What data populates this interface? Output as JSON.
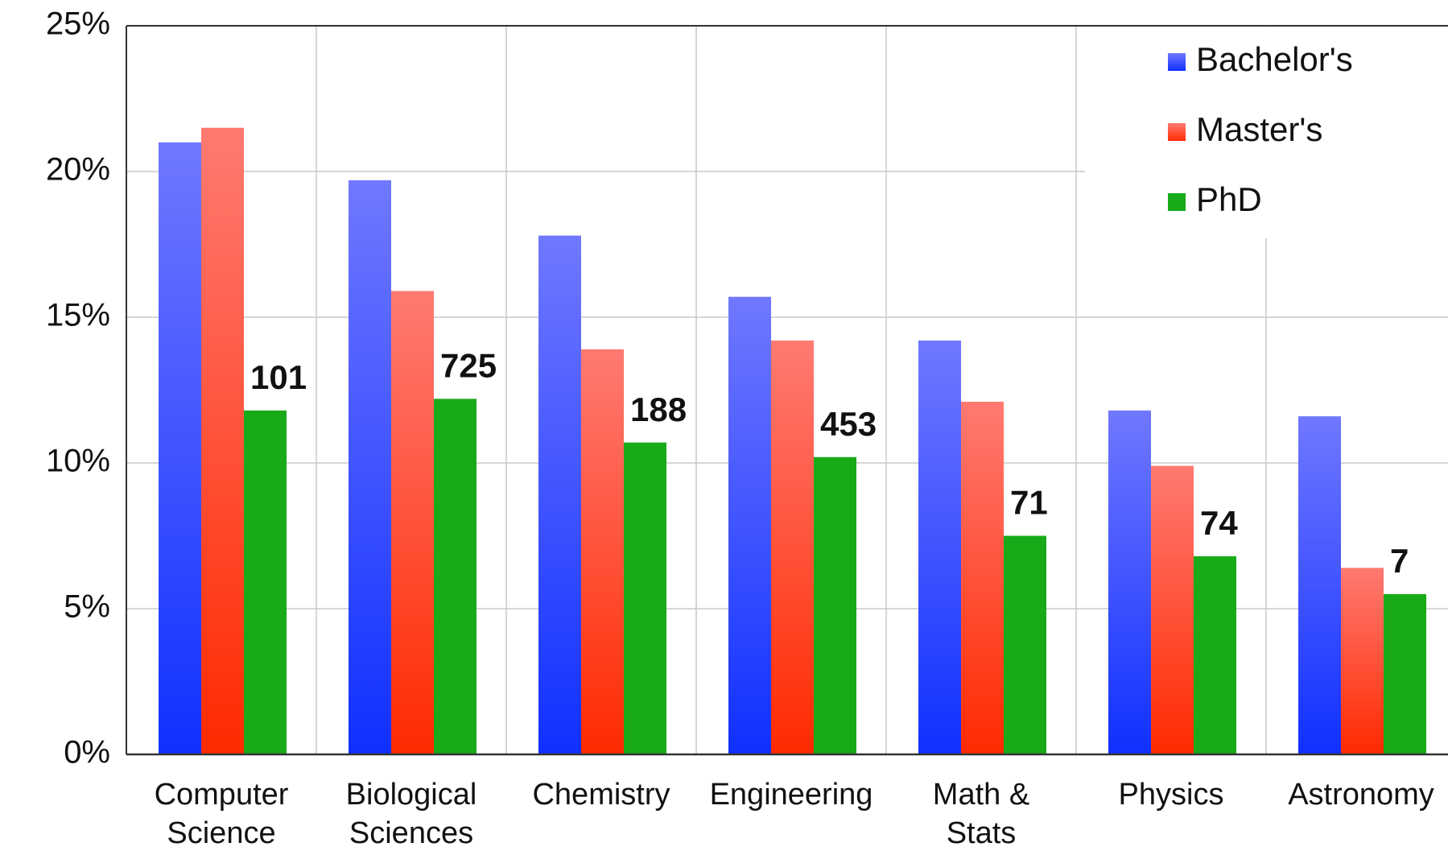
{
  "chart_data": {
    "type": "bar",
    "categories": [
      "Computer Science",
      "Biological Sciences",
      "Chemistry",
      "Engineering",
      "Math & Stats",
      "Physics",
      "Astronomy"
    ],
    "series": [
      {
        "name": "Bachelor's",
        "color": "#1a30ff",
        "values": [
          21.0,
          19.7,
          17.8,
          15.7,
          14.2,
          11.8,
          11.6
        ]
      },
      {
        "name": "Master's",
        "color": "#ff3010",
        "values": [
          21.5,
          15.9,
          13.9,
          14.2,
          12.1,
          9.9,
          6.4
        ]
      },
      {
        "name": "PhD",
        "color": "#18aa18",
        "values": [
          11.8,
          12.2,
          10.7,
          10.2,
          7.5,
          6.8,
          5.5
        ]
      }
    ],
    "annotations": [
      "101",
      "725",
      "188",
      "453",
      "71",
      "74",
      "7"
    ],
    "ylim": [
      0,
      25
    ],
    "yticks": [
      {
        "value": 0,
        "label": "0%"
      },
      {
        "value": 5,
        "label": "5%"
      },
      {
        "value": 10,
        "label": "10%"
      },
      {
        "value": 15,
        "label": "15%"
      },
      {
        "value": 20,
        "label": "20%"
      },
      {
        "value": 25,
        "label": "25%"
      }
    ],
    "grid": true,
    "legend": "upper right"
  }
}
